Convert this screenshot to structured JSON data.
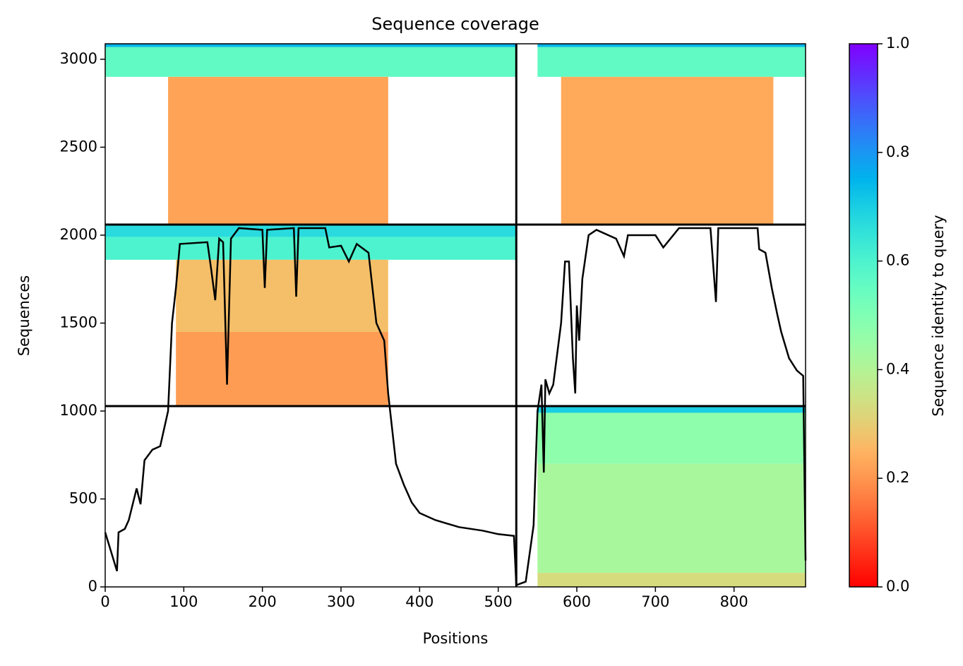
{
  "chart_data": {
    "type": "heatmap",
    "title": "Sequence coverage",
    "xlabel": "Positions",
    "ylabel": "Sequences",
    "xlim": [
      0,
      891
    ],
    "ylim": [
      0,
      3088
    ],
    "xticks": [
      0,
      100,
      200,
      300,
      400,
      500,
      600,
      700,
      800
    ],
    "yticks": [
      0,
      500,
      1000,
      1500,
      2000,
      2500,
      3000
    ],
    "colorbar": {
      "label": "Sequence identity to query",
      "lim": [
        0,
        1
      ],
      "colormap": "rainbow_r",
      "ticks": [
        {
          "value": 0,
          "label": "0.0"
        },
        0.2,
        0.4,
        0.6,
        0.8,
        {
          "value": 1,
          "label": "1.0"
        }
      ]
    },
    "blocks": [
      {
        "x0": 0,
        "x1": 523,
        "y0": 3070,
        "y1": 3088,
        "identity": 0.75
      },
      {
        "x0": 0,
        "x1": 523,
        "y0": 2900,
        "y1": 3070,
        "identity": 0.56
      },
      {
        "x0": 80,
        "x1": 360,
        "y0": 2060,
        "y1": 2900,
        "identity": 0.22
      },
      {
        "x0": 0,
        "x1": 523,
        "y0": 1990,
        "y1": 2060,
        "identity": 0.67
      },
      {
        "x0": 0,
        "x1": 523,
        "y0": 1860,
        "y1": 1990,
        "identity": 0.6
      },
      {
        "x0": 90,
        "x1": 360,
        "y0": 1450,
        "y1": 1860,
        "identity": 0.27
      },
      {
        "x0": 90,
        "x1": 360,
        "y0": 1028,
        "y1": 1450,
        "identity": 0.21
      },
      {
        "x0": 550,
        "x1": 891,
        "y0": 3070,
        "y1": 3088,
        "identity": 0.75
      },
      {
        "x0": 550,
        "x1": 891,
        "y0": 2900,
        "y1": 3070,
        "identity": 0.56
      },
      {
        "x0": 580,
        "x1": 850,
        "y0": 2060,
        "y1": 2900,
        "identity": 0.23
      },
      {
        "x0": 550,
        "x1": 891,
        "y0": 990,
        "y1": 1028,
        "identity": 0.7
      },
      {
        "x0": 550,
        "x1": 891,
        "y0": 700,
        "y1": 990,
        "identity": 0.47
      },
      {
        "x0": 550,
        "x1": 891,
        "y0": 80,
        "y1": 700,
        "identity": 0.42
      },
      {
        "x0": 550,
        "x1": 891,
        "y0": 0,
        "y1": 80,
        "identity": 0.33
      }
    ],
    "boundaries": {
      "x": [
        523
      ],
      "y": [
        1028,
        2060
      ]
    },
    "coverage": {
      "color": "#000000",
      "x": [
        0,
        15,
        17,
        25,
        30,
        40,
        45,
        50,
        60,
        70,
        80,
        85,
        90,
        95,
        130,
        135,
        140,
        145,
        150,
        155,
        160,
        170,
        200,
        203,
        206,
        240,
        243,
        246,
        280,
        285,
        300,
        310,
        320,
        335,
        345,
        355,
        360,
        365,
        370,
        380,
        390,
        400,
        420,
        450,
        480,
        500,
        520,
        523,
        535,
        545,
        550,
        555,
        558,
        560,
        565,
        570,
        580,
        585,
        590,
        595,
        598,
        600,
        603,
        607,
        615,
        625,
        650,
        660,
        665,
        700,
        710,
        730,
        770,
        777,
        780,
        830,
        832,
        840,
        848,
        855,
        860,
        870,
        880,
        888,
        891
      ],
      "y": [
        310,
        90,
        310,
        330,
        380,
        560,
        470,
        720,
        780,
        800,
        1000,
        1500,
        1700,
        1950,
        1960,
        1800,
        1630,
        1980,
        1960,
        1150,
        1980,
        2040,
        2030,
        1700,
        2030,
        2040,
        1650,
        2040,
        2040,
        1930,
        1940,
        1850,
        1950,
        1900,
        1500,
        1400,
        1100,
        900,
        700,
        580,
        480,
        420,
        380,
        340,
        320,
        300,
        290,
        10,
        30,
        350,
        1000,
        1150,
        650,
        1180,
        1100,
        1150,
        1500,
        1850,
        1850,
        1300,
        1100,
        1600,
        1400,
        1750,
        2000,
        2030,
        1980,
        1880,
        2000,
        2000,
        1930,
        2040,
        2040,
        1620,
        2040,
        2040,
        1920,
        1900,
        1700,
        1550,
        1450,
        1300,
        1230,
        1200,
        150
      ]
    }
  }
}
